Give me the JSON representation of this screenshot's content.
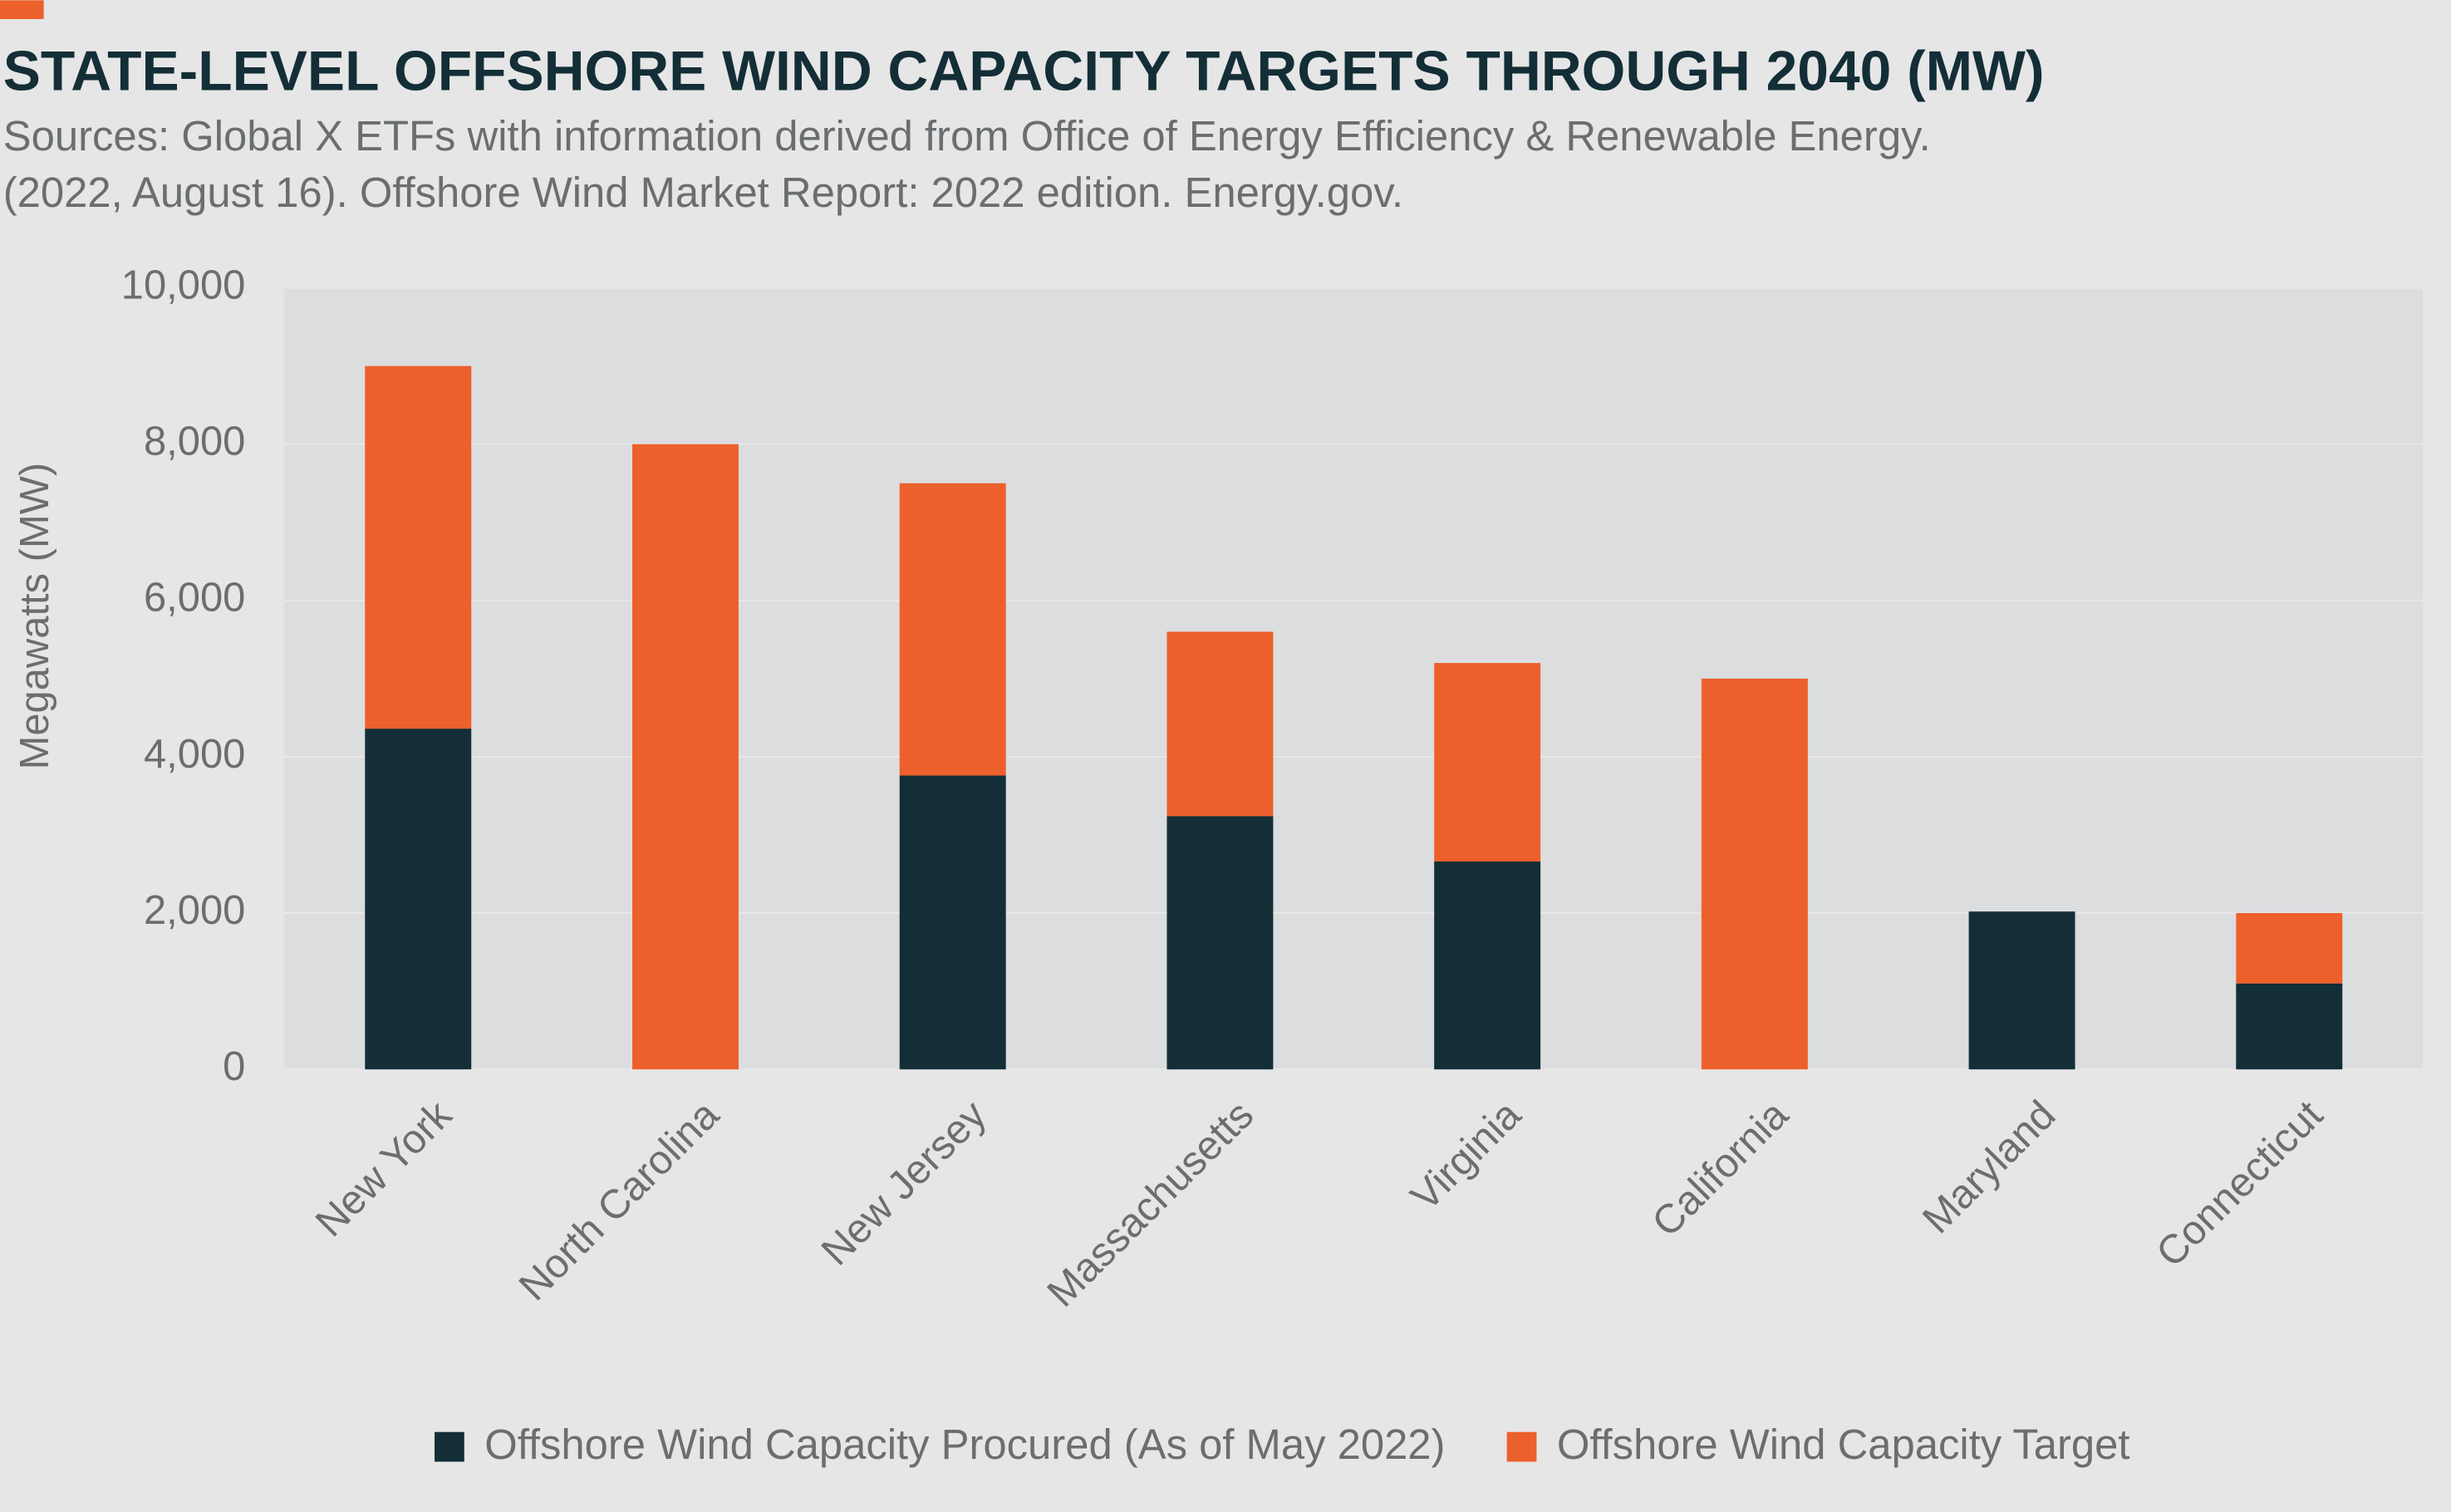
{
  "chart_data": {
    "type": "stacked_bar",
    "title": "STATE-LEVEL OFFSHORE WIND CAPACITY TARGETS THROUGH 2040 (MW)",
    "subtitle": [
      "Sources: Global X ETFs with information derived from Office of Energy Efficiency & Renewable Energy.",
      "(2022, August 16). Offshore Wind Market Report: 2022 edition. Energy.gov."
    ],
    "y_label": "Megawatts (MW)",
    "categories": [
      "New York",
      "North Carolina",
      "New Jersey",
      "Massachusetts",
      "Virginia",
      "California",
      "Maryland",
      "Connecticut"
    ],
    "series": [
      {
        "name": "Offshore Wind Capacity Procured (As of May 2022)",
        "color": "#132e37",
        "values": [
          4360,
          0,
          3760,
          3240,
          2660,
          0,
          2020,
          1100
        ]
      },
      {
        "name": "Offshore Wind Capacity Target",
        "color": "#ec602b",
        "values": [
          4640,
          8000,
          3740,
          2360,
          2540,
          5000,
          0,
          900
        ]
      }
    ],
    "ylim": [
      0,
      10000
    ],
    "yticks": [
      0,
      {
        "value": 2000,
        "label": "2,000"
      },
      {
        "value": 4000,
        "label": "4,000"
      },
      {
        "value": 6000,
        "label": "6,000"
      },
      {
        "value": 8000,
        "label": "8,000"
      },
      {
        "value": 10000,
        "label": "10,000"
      }
    ],
    "grid": true
  }
}
